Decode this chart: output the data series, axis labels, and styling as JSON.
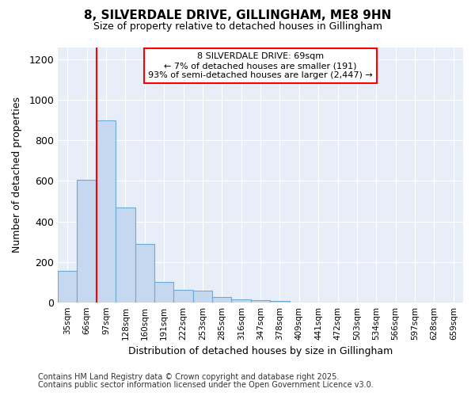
{
  "title1": "8, SILVERDALE DRIVE, GILLINGHAM, ME8 9HN",
  "title2": "Size of property relative to detached houses in Gillingham",
  "xlabel": "Distribution of detached houses by size in Gillingham",
  "ylabel": "Number of detached properties",
  "bins": [
    "35sqm",
    "66sqm",
    "97sqm",
    "128sqm",
    "160sqm",
    "191sqm",
    "222sqm",
    "253sqm",
    "285sqm",
    "316sqm",
    "347sqm",
    "378sqm",
    "409sqm",
    "441sqm",
    "472sqm",
    "503sqm",
    "534sqm",
    "566sqm",
    "597sqm",
    "628sqm",
    "659sqm"
  ],
  "values": [
    155,
    605,
    900,
    470,
    290,
    100,
    63,
    58,
    25,
    15,
    12,
    8,
    0,
    0,
    0,
    0,
    0,
    0,
    0,
    0,
    0
  ],
  "bar_color": "#c5d8f0",
  "bar_edge_color": "#6aaad4",
  "annotation_box_text": "8 SILVERDALE DRIVE: 69sqm\n← 7% of detached houses are smaller (191)\n93% of semi-detached houses are larger (2,447) →",
  "bg_color": "#ffffff",
  "plot_bg_color": "#e8eef8",
  "grid_color": "#ffffff",
  "footnote1": "Contains HM Land Registry data © Crown copyright and database right 2025.",
  "footnote2": "Contains public sector information licensed under the Open Government Licence v3.0.",
  "ylim": [
    0,
    1260
  ],
  "yticks": [
    0,
    200,
    400,
    600,
    800,
    1000,
    1200
  ],
  "red_line_x": 1.5
}
